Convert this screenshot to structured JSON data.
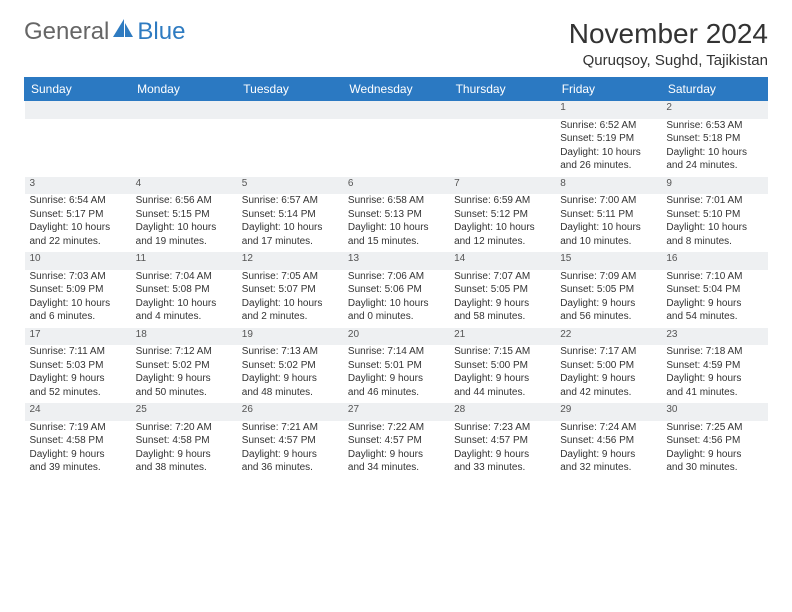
{
  "logo": {
    "part1": "General",
    "part2": "Blue"
  },
  "title": "November 2024",
  "location": "Quruqsoy, Sughd, Tajikistan",
  "weekday_labels": [
    "Sunday",
    "Monday",
    "Tuesday",
    "Wednesday",
    "Thursday",
    "Friday",
    "Saturday"
  ],
  "colors": {
    "header_bg": "#2b79c2",
    "daynum_bg": "#eef0f2",
    "week_divider": "#2b79c2",
    "text": "#333333"
  },
  "label": {
    "sunrise": "Sunrise:",
    "sunset": "Sunset:",
    "daylight": "Daylight:"
  },
  "weeks": [
    [
      null,
      null,
      null,
      null,
      null,
      {
        "n": "1",
        "sr": "6:52 AM",
        "ss": "5:19 PM",
        "dl1": "10 hours",
        "dl2": "and 26 minutes."
      },
      {
        "n": "2",
        "sr": "6:53 AM",
        "ss": "5:18 PM",
        "dl1": "10 hours",
        "dl2": "and 24 minutes."
      }
    ],
    [
      {
        "n": "3",
        "sr": "6:54 AM",
        "ss": "5:17 PM",
        "dl1": "10 hours",
        "dl2": "and 22 minutes."
      },
      {
        "n": "4",
        "sr": "6:56 AM",
        "ss": "5:15 PM",
        "dl1": "10 hours",
        "dl2": "and 19 minutes."
      },
      {
        "n": "5",
        "sr": "6:57 AM",
        "ss": "5:14 PM",
        "dl1": "10 hours",
        "dl2": "and 17 minutes."
      },
      {
        "n": "6",
        "sr": "6:58 AM",
        "ss": "5:13 PM",
        "dl1": "10 hours",
        "dl2": "and 15 minutes."
      },
      {
        "n": "7",
        "sr": "6:59 AM",
        "ss": "5:12 PM",
        "dl1": "10 hours",
        "dl2": "and 12 minutes."
      },
      {
        "n": "8",
        "sr": "7:00 AM",
        "ss": "5:11 PM",
        "dl1": "10 hours",
        "dl2": "and 10 minutes."
      },
      {
        "n": "9",
        "sr": "7:01 AM",
        "ss": "5:10 PM",
        "dl1": "10 hours",
        "dl2": "and 8 minutes."
      }
    ],
    [
      {
        "n": "10",
        "sr": "7:03 AM",
        "ss": "5:09 PM",
        "dl1": "10 hours",
        "dl2": "and 6 minutes."
      },
      {
        "n": "11",
        "sr": "7:04 AM",
        "ss": "5:08 PM",
        "dl1": "10 hours",
        "dl2": "and 4 minutes."
      },
      {
        "n": "12",
        "sr": "7:05 AM",
        "ss": "5:07 PM",
        "dl1": "10 hours",
        "dl2": "and 2 minutes."
      },
      {
        "n": "13",
        "sr": "7:06 AM",
        "ss": "5:06 PM",
        "dl1": "10 hours",
        "dl2": "and 0 minutes."
      },
      {
        "n": "14",
        "sr": "7:07 AM",
        "ss": "5:05 PM",
        "dl1": "9 hours",
        "dl2": "and 58 minutes."
      },
      {
        "n": "15",
        "sr": "7:09 AM",
        "ss": "5:05 PM",
        "dl1": "9 hours",
        "dl2": "and 56 minutes."
      },
      {
        "n": "16",
        "sr": "7:10 AM",
        "ss": "5:04 PM",
        "dl1": "9 hours",
        "dl2": "and 54 minutes."
      }
    ],
    [
      {
        "n": "17",
        "sr": "7:11 AM",
        "ss": "5:03 PM",
        "dl1": "9 hours",
        "dl2": "and 52 minutes."
      },
      {
        "n": "18",
        "sr": "7:12 AM",
        "ss": "5:02 PM",
        "dl1": "9 hours",
        "dl2": "and 50 minutes."
      },
      {
        "n": "19",
        "sr": "7:13 AM",
        "ss": "5:02 PM",
        "dl1": "9 hours",
        "dl2": "and 48 minutes."
      },
      {
        "n": "20",
        "sr": "7:14 AM",
        "ss": "5:01 PM",
        "dl1": "9 hours",
        "dl2": "and 46 minutes."
      },
      {
        "n": "21",
        "sr": "7:15 AM",
        "ss": "5:00 PM",
        "dl1": "9 hours",
        "dl2": "and 44 minutes."
      },
      {
        "n": "22",
        "sr": "7:17 AM",
        "ss": "5:00 PM",
        "dl1": "9 hours",
        "dl2": "and 42 minutes."
      },
      {
        "n": "23",
        "sr": "7:18 AM",
        "ss": "4:59 PM",
        "dl1": "9 hours",
        "dl2": "and 41 minutes."
      }
    ],
    [
      {
        "n": "24",
        "sr": "7:19 AM",
        "ss": "4:58 PM",
        "dl1": "9 hours",
        "dl2": "and 39 minutes."
      },
      {
        "n": "25",
        "sr": "7:20 AM",
        "ss": "4:58 PM",
        "dl1": "9 hours",
        "dl2": "and 38 minutes."
      },
      {
        "n": "26",
        "sr": "7:21 AM",
        "ss": "4:57 PM",
        "dl1": "9 hours",
        "dl2": "and 36 minutes."
      },
      {
        "n": "27",
        "sr": "7:22 AM",
        "ss": "4:57 PM",
        "dl1": "9 hours",
        "dl2": "and 34 minutes."
      },
      {
        "n": "28",
        "sr": "7:23 AM",
        "ss": "4:57 PM",
        "dl1": "9 hours",
        "dl2": "and 33 minutes."
      },
      {
        "n": "29",
        "sr": "7:24 AM",
        "ss": "4:56 PM",
        "dl1": "9 hours",
        "dl2": "and 32 minutes."
      },
      {
        "n": "30",
        "sr": "7:25 AM",
        "ss": "4:56 PM",
        "dl1": "9 hours",
        "dl2": "and 30 minutes."
      }
    ]
  ]
}
